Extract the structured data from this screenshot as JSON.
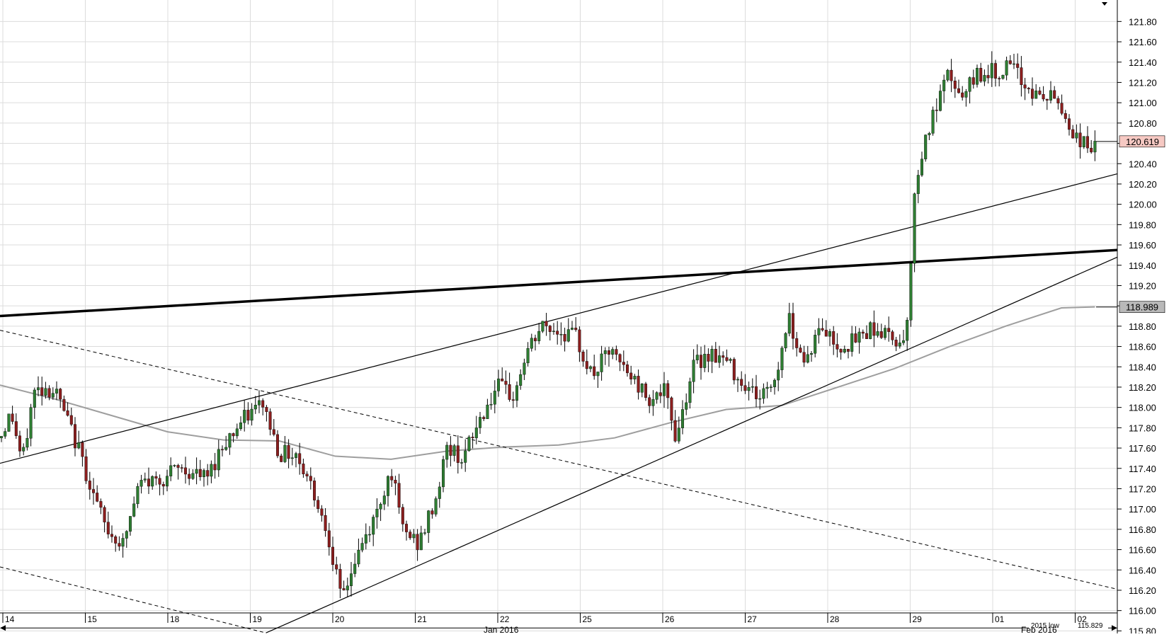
{
  "chart_data": {
    "type": "candlestick",
    "title": "",
    "xlabel": "",
    "ylabel": "",
    "y_axis_position": "right",
    "ylim": [
      115.75,
      121.9
    ],
    "grid": true,
    "y_ticks": [
      "121.80",
      "121.60",
      "121.40",
      "121.20",
      "121.00",
      "120.80",
      "120.60",
      "120.40",
      "120.20",
      "120.00",
      "119.80",
      "119.60",
      "119.40",
      "119.20",
      "119.00",
      "118.80",
      "118.60",
      "118.40",
      "118.20",
      "118.00",
      "117.80",
      "117.60",
      "117.40",
      "117.20",
      "117.00",
      "116.80",
      "116.60",
      "116.40",
      "116.20",
      "116.00",
      "115.80"
    ],
    "x_day_labels": [
      "14",
      "15",
      "18",
      "19",
      "20",
      "21",
      "22",
      "25",
      "26",
      "27",
      "28",
      "29",
      "01",
      "02"
    ],
    "x_month_labels": [
      "Jan 2016",
      "Feb 2016"
    ],
    "price_markers": [
      {
        "label": "120.619",
        "value": 120.619,
        "color": "#f6c9c3"
      },
      {
        "label": "118.989",
        "value": 118.989,
        "color": "#b9b9b9"
      }
    ],
    "annotation": {
      "text": "2015 low",
      "value_text": "115.829",
      "value": 115.829
    },
    "colors": {
      "up": "#2e7d32",
      "down": "#8b1e1e",
      "ma": "#9e9e9e",
      "grid": "#dcdcdc"
    },
    "trendlines": [
      {
        "style": "thick",
        "points": [
          [
            0,
            118.9
          ],
          [
            1,
            119.55
          ]
        ]
      },
      {
        "style": "solid",
        "points": [
          [
            0,
            117.45
          ],
          [
            1,
            120.3
          ]
        ]
      },
      {
        "style": "solid",
        "points": [
          [
            0.238,
            115.78
          ],
          [
            1,
            119.48
          ]
        ]
      },
      {
        "style": "dashed",
        "points": [
          [
            0,
            118.76
          ],
          [
            1,
            116.21
          ]
        ]
      },
      {
        "style": "dashed",
        "points": [
          [
            0,
            116.43
          ],
          [
            0.238,
            115.78
          ]
        ]
      }
    ],
    "moving_average": {
      "x": [
        0,
        0.05,
        0.1,
        0.15,
        0.2,
        0.25,
        0.3,
        0.35,
        0.4,
        0.45,
        0.5,
        0.55,
        0.6,
        0.65,
        0.7,
        0.75,
        0.8,
        0.85,
        0.9,
        0.95,
        0.98
      ],
      "y": [
        118.22,
        118.08,
        117.92,
        117.76,
        117.68,
        117.67,
        117.52,
        117.49,
        117.57,
        117.61,
        117.63,
        117.7,
        117.85,
        117.98,
        118.02,
        118.2,
        118.38,
        118.6,
        118.8,
        118.98,
        118.99
      ]
    },
    "series": [
      {
        "anchors": [
          [
            0,
            117.7
          ],
          [
            0.01,
            117.95
          ],
          [
            0.02,
            117.45
          ],
          [
            0.03,
            118.15
          ],
          [
            0.04,
            118.2
          ],
          [
            0.05,
            118.15
          ],
          [
            0.07,
            117.6
          ],
          [
            0.085,
            117.1
          ],
          [
            0.095,
            116.8
          ],
          [
            0.11,
            116.65
          ],
          [
            0.125,
            117.25
          ],
          [
            0.145,
            117.3
          ],
          [
            0.16,
            117.4
          ],
          [
            0.185,
            117.3
          ],
          [
            0.2,
            117.65
          ],
          [
            0.22,
            117.9
          ],
          [
            0.235,
            118.05
          ],
          [
            0.25,
            117.55
          ],
          [
            0.265,
            117.55
          ],
          [
            0.28,
            117.2
          ],
          [
            0.295,
            116.7
          ],
          [
            0.305,
            116.1
          ],
          [
            0.32,
            116.55
          ],
          [
            0.335,
            116.9
          ],
          [
            0.35,
            117.4
          ],
          [
            0.36,
            116.8
          ],
          [
            0.375,
            116.65
          ],
          [
            0.39,
            117.1
          ],
          [
            0.4,
            117.6
          ],
          [
            0.415,
            117.5
          ],
          [
            0.43,
            117.9
          ],
          [
            0.445,
            118.2
          ],
          [
            0.46,
            118.1
          ],
          [
            0.47,
            118.5
          ],
          [
            0.485,
            118.8
          ],
          [
            0.5,
            118.75
          ],
          [
            0.515,
            118.7
          ],
          [
            0.53,
            118.3
          ],
          [
            0.545,
            118.55
          ],
          [
            0.565,
            118.3
          ],
          [
            0.58,
            118.1
          ],
          [
            0.595,
            118.15
          ],
          [
            0.605,
            117.7
          ],
          [
            0.62,
            118.4
          ],
          [
            0.635,
            118.55
          ],
          [
            0.65,
            118.45
          ],
          [
            0.665,
            118.25
          ],
          [
            0.68,
            118.1
          ],
          [
            0.695,
            118.3
          ],
          [
            0.705,
            118.9
          ],
          [
            0.72,
            118.45
          ],
          [
            0.735,
            118.8
          ],
          [
            0.75,
            118.6
          ],
          [
            0.765,
            118.65
          ],
          [
            0.78,
            118.8
          ],
          [
            0.795,
            118.7
          ],
          [
            0.81,
            118.65
          ],
          [
            0.815,
            119.4
          ],
          [
            0.82,
            120.3
          ],
          [
            0.83,
            120.7
          ],
          [
            0.84,
            121.0
          ],
          [
            0.85,
            121.3
          ],
          [
            0.86,
            121.0
          ],
          [
            0.875,
            121.3
          ],
          [
            0.89,
            121.3
          ],
          [
            0.905,
            121.35
          ],
          [
            0.915,
            121.2
          ],
          [
            0.93,
            121.05
          ],
          [
            0.945,
            121.05
          ],
          [
            0.96,
            120.7
          ],
          [
            0.975,
            120.55
          ],
          [
            0.98,
            120.62
          ]
        ]
      }
    ]
  }
}
